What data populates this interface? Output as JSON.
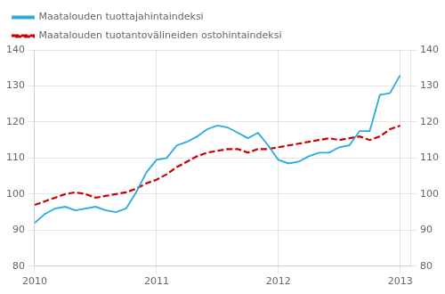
{
  "chart_data": {
    "type": "line",
    "x": [
      2010,
      2010.0833333333333,
      2010.1666666666667,
      2010.25,
      2010.3333333333333,
      2010.4166666666667,
      2010.5,
      2010.5833333333333,
      2010.6666666666667,
      2010.75,
      2010.8333333333333,
      2010.9166666666667,
      2011,
      2011.0833333333333,
      2011.1666666666667,
      2011.25,
      2011.3333333333333,
      2011.4166666666667,
      2011.5,
      2011.5833333333333,
      2011.6666666666667,
      2011.75,
      2011.8333333333333,
      2011.9166666666667,
      2012,
      2012.0833333333333,
      2012.1666666666667,
      2012.25,
      2012.3333333333333,
      2012.4166666666667,
      2012.5,
      2012.5833333333333,
      2012.6666666666667,
      2012.75,
      2012.8333333333333,
      2012.9166666666667,
      2013
    ],
    "series": [
      {
        "name": "Maatalouden tuottajahintaindeksi",
        "color": "#29ABE2",
        "line_style": "solid",
        "values": [
          92.0,
          94.5,
          96.0,
          96.5,
          95.5,
          96.0,
          96.5,
          95.5,
          95.0,
          96.0,
          100.5,
          106.0,
          109.5,
          110.0,
          113.5,
          114.5,
          116.0,
          118.0,
          119.0,
          118.5,
          117.0,
          115.5,
          117.0,
          113.5,
          109.5,
          108.5,
          109.0,
          110.5,
          111.5,
          111.5,
          113.0,
          113.5,
          117.5,
          117.5,
          127.5,
          128.0,
          133.0
        ]
      },
      {
        "name": "Maatalouden tuotantovälineiden ostohintaindeksi",
        "color": "#CC0000",
        "line_style": "dashed",
        "axis": "y2",
        "values": [
          97.0,
          98.0,
          99.0,
          100.0,
          100.5,
          100.0,
          99.0,
          99.5,
          100.0,
          100.5,
          101.5,
          103.0,
          104.0,
          105.5,
          107.5,
          109.0,
          110.5,
          111.5,
          112.0,
          112.5,
          112.5,
          111.5,
          112.5,
          112.5,
          113.0,
          113.5,
          114.0,
          114.5,
          115.0,
          115.5,
          115.0,
          115.5,
          116.0,
          115.0,
          116.0,
          118.0,
          119.0
        ]
      }
    ],
    "xlim": [
      2010,
      2013.083
    ],
    "xticks": [
      2010,
      2011,
      2012,
      2013
    ],
    "ylim": [
      80,
      140
    ],
    "yticks": [
      80,
      90,
      100,
      110,
      120,
      130,
      140
    ],
    "y2lim": [
      80,
      140
    ],
    "y2ticks": [
      80,
      90,
      100,
      110,
      120,
      130,
      140
    ],
    "grid": true,
    "legend": "upper left"
  }
}
